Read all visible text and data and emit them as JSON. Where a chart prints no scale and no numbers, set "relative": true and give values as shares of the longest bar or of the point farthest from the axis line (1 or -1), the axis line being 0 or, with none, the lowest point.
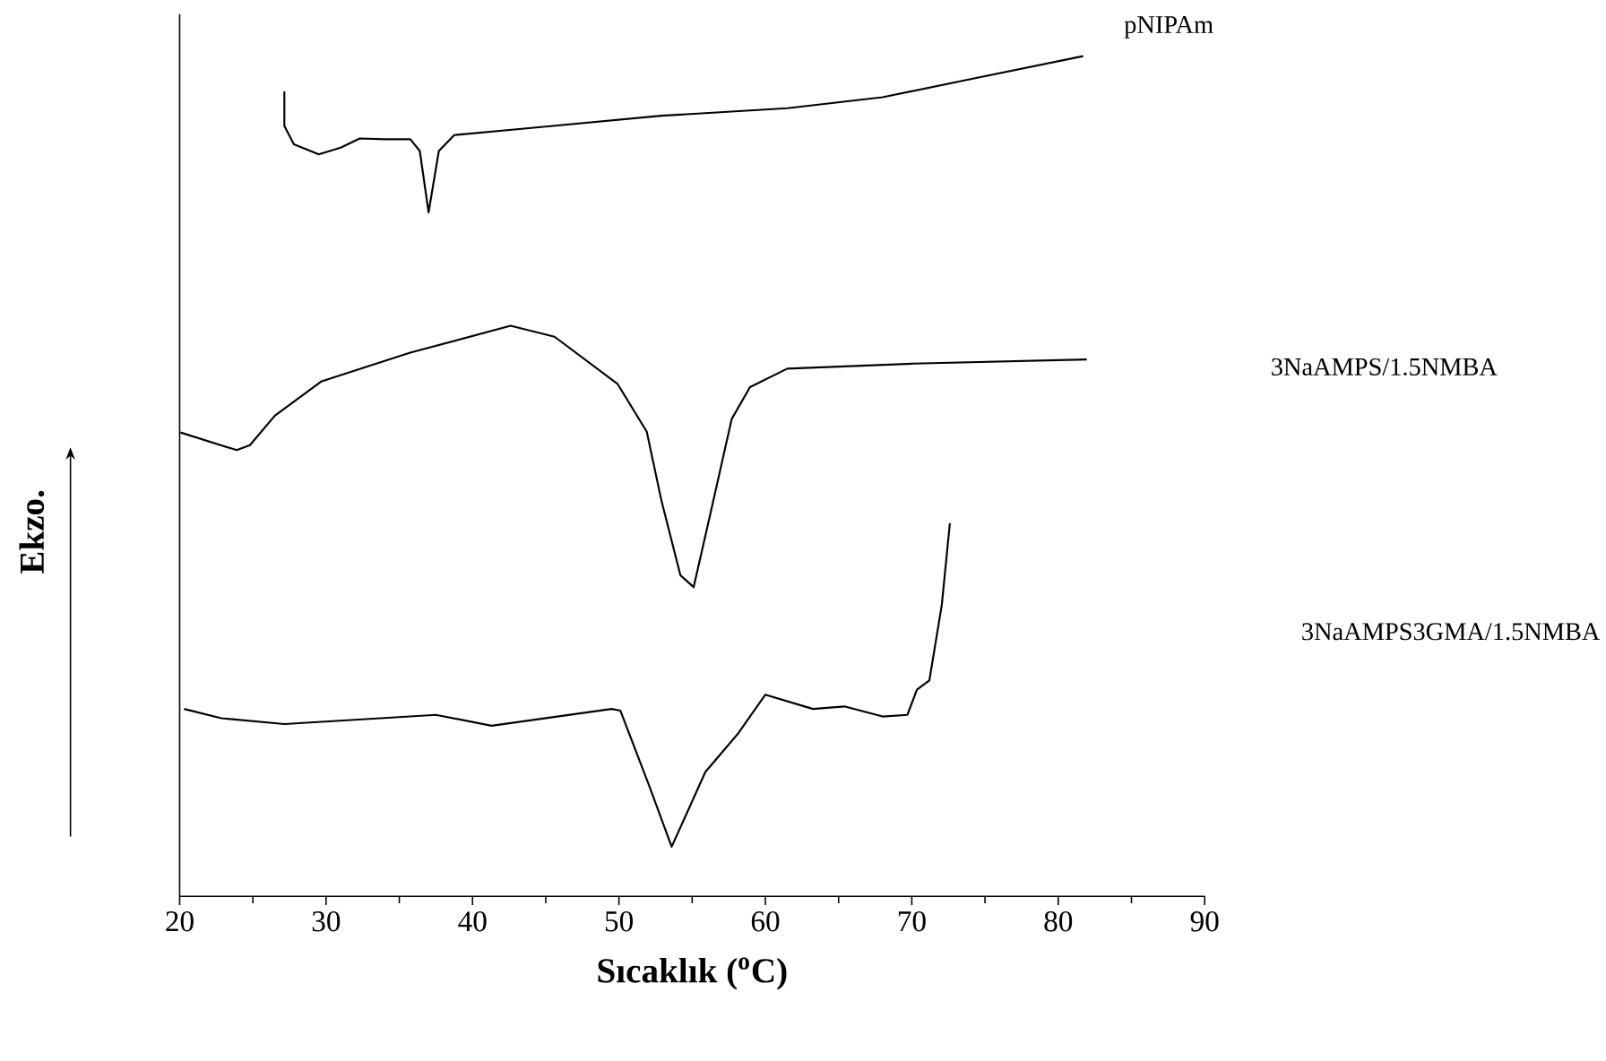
{
  "chart_data": {
    "type": "line",
    "relative": true,
    "xlabel": "Sıcaklık ($^{o}$C)",
    "ylabel": "Ekzo.",
    "xlim": [
      20,
      90
    ],
    "xticks": [
      20,
      30,
      40,
      50,
      60,
      70,
      80,
      90
    ],
    "grid": false,
    "marker": "none",
    "line_style": "solid",
    "series": [
      {
        "name": "pNIPAm",
        "color": "#000000",
        "x": [
          27.15,
          27.15,
          27.8,
          29.5,
          31.0,
          32.3,
          34.0,
          35.75,
          36.4,
          37.0,
          37.7,
          38.75,
          44.35,
          52.9,
          61.5,
          68.0,
          74.4,
          81.7
        ],
        "values": [
          0.958,
          0.917,
          0.895,
          0.883,
          0.891,
          0.902,
          0.901,
          0.901,
          0.887,
          0.814,
          0.887,
          0.906,
          0.915,
          0.929,
          0.938,
          0.951,
          0.974,
          1.0
        ]
      },
      {
        "name": "3NaAMPS/1.5NMBA",
        "color": "#000000",
        "x": [
          20.06,
          23.9,
          24.8,
          26.5,
          29.7,
          35.75,
          42.6,
          45.6,
          49.9,
          51.9,
          52.9,
          54.2,
          55.1,
          56.2,
          57.7,
          58.95,
          61.5,
          70.1,
          81.95
        ],
        "values": [
          0.552,
          0.531,
          0.537,
          0.572,
          0.613,
          0.647,
          0.679,
          0.666,
          0.61,
          0.553,
          0.471,
          0.382,
          0.368,
          0.452,
          0.568,
          0.606,
          0.628,
          0.634,
          0.639
        ]
      },
      {
        "name": "3NaAMPS3GMA/1.5NMBA",
        "color": "#000000",
        "x": [
          20.3,
          22.85,
          27.15,
          37.5,
          41.3,
          49.5,
          50.1,
          52.1,
          53.6,
          55.9,
          58.1,
          60.0,
          63.25,
          65.4,
          68.0,
          69.7,
          70.35,
          71.2,
          72.05,
          72.6
        ],
        "values": [
          0.223,
          0.212,
          0.205,
          0.216,
          0.203,
          0.223,
          0.221,
          0.13,
          0.059,
          0.148,
          0.193,
          0.24,
          0.223,
          0.226,
          0.214,
          0.216,
          0.246,
          0.257,
          0.347,
          0.444
        ]
      }
    ]
  }
}
